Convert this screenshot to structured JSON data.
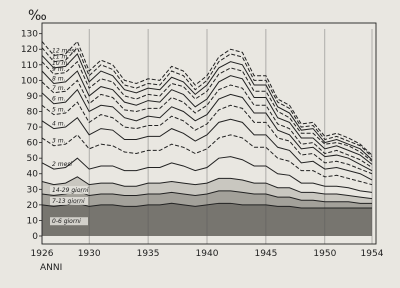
{
  "chart_data": {
    "type": "line",
    "y_label": "‰",
    "x_label": "ANNI",
    "x": [
      1926,
      1927,
      1928,
      1929,
      1930,
      1931,
      1932,
      1933,
      1934,
      1935,
      1936,
      1937,
      1938,
      1939,
      1940,
      1941,
      1942,
      1943,
      1944,
      1945,
      1946,
      1947,
      1948,
      1949,
      1950,
      1951,
      1952,
      1953,
      1954
    ],
    "xlim": [
      1926,
      1954
    ],
    "xticks": [
      1926,
      1930,
      1935,
      1940,
      1945,
      1950,
      1954
    ],
    "ylim": [
      0,
      133
    ],
    "yticks": [
      0,
      10,
      20,
      30,
      40,
      50,
      60,
      70,
      80,
      90,
      100,
      110,
      120,
      130
    ],
    "series": [
      {
        "name": "0-6 giorni",
        "color": "#222",
        "fill": "#77756f",
        "dash": false,
        "values": [
          20,
          19,
          20,
          21,
          19,
          20,
          20,
          19,
          19,
          20,
          20,
          21,
          20,
          19,
          20,
          21,
          21,
          20,
          20,
          20,
          19,
          19,
          18,
          18,
          18,
          18,
          18,
          18,
          18
        ]
      },
      {
        "name": "7-13 giorni",
        "color": "#222",
        "fill": "#a3a19a",
        "dash": false,
        "values": [
          27,
          26,
          27,
          29,
          26,
          27,
          27,
          26,
          26,
          27,
          27,
          28,
          27,
          26,
          27,
          29,
          29,
          28,
          27,
          27,
          25,
          25,
          23,
          23,
          22,
          22,
          22,
          21,
          21
        ]
      },
      {
        "name": "14-29 giorni",
        "color": "#222",
        "fill": "#c9c7c0",
        "dash": false,
        "values": [
          35,
          33,
          34,
          38,
          33,
          34,
          34,
          32,
          32,
          34,
          34,
          35,
          34,
          33,
          34,
          37,
          37,
          36,
          34,
          34,
          31,
          31,
          28,
          28,
          27,
          27,
          26,
          25,
          24
        ]
      },
      {
        "name": "2 mesi",
        "color": "#222",
        "dash": false,
        "values": [
          47,
          43,
          44,
          50,
          43,
          45,
          45,
          42,
          42,
          44,
          44,
          47,
          45,
          42,
          44,
          50,
          51,
          49,
          45,
          45,
          40,
          39,
          34,
          34,
          32,
          32,
          31,
          29,
          28
        ]
      },
      {
        "name": "3 m.",
        "color": "#222",
        "dash": true,
        "values": [
          63,
          58,
          59,
          65,
          56,
          59,
          58,
          54,
          53,
          55,
          55,
          59,
          57,
          53,
          56,
          63,
          65,
          63,
          57,
          57,
          50,
          48,
          42,
          42,
          38,
          39,
          37,
          35,
          33
        ]
      },
      {
        "name": "4 m.",
        "color": "#222",
        "dash": false,
        "values": [
          74,
          69,
          70,
          76,
          65,
          69,
          68,
          62,
          62,
          64,
          64,
          69,
          66,
          61,
          65,
          73,
          75,
          73,
          65,
          65,
          57,
          55,
          47,
          48,
          43,
          44,
          42,
          40,
          36
        ]
      },
      {
        "name": "5 m.",
        "color": "#222",
        "dash": true,
        "values": [
          84,
          78,
          79,
          86,
          73,
          78,
          76,
          70,
          69,
          71,
          71,
          77,
          74,
          68,
          72,
          81,
          84,
          82,
          73,
          73,
          63,
          61,
          52,
          53,
          47,
          48,
          46,
          43,
          40
        ]
      },
      {
        "name": "6 m.",
        "color": "#222",
        "dash": false,
        "values": [
          92,
          85,
          86,
          94,
          80,
          84,
          83,
          76,
          74,
          77,
          76,
          83,
          80,
          74,
          78,
          88,
          91,
          89,
          79,
          79,
          68,
          65,
          56,
          57,
          51,
          52,
          50,
          46,
          42
        ]
      },
      {
        "name": "7 m.",
        "color": "#222",
        "dash": true,
        "values": [
          99,
          92,
          93,
          100,
          85,
          91,
          89,
          81,
          80,
          82,
          82,
          89,
          86,
          79,
          84,
          94,
          97,
          95,
          84,
          84,
          72,
          69,
          59,
          60,
          53,
          55,
          52,
          49,
          44
        ]
      },
      {
        "name": "8 m.",
        "color": "#222",
        "dash": false,
        "values": [
          106,
          98,
          99,
          106,
          90,
          96,
          94,
          86,
          84,
          87,
          86,
          94,
          91,
          83,
          88,
          99,
          103,
          101,
          89,
          89,
          76,
          73,
          63,
          63,
          56,
          58,
          55,
          52,
          46
        ]
      },
      {
        "name": "9 m.",
        "color": "#222",
        "dash": true,
        "values": [
          112,
          104,
          105,
          112,
          95,
          101,
          99,
          90,
          88,
          91,
          90,
          98,
          96,
          88,
          93,
          104,
          108,
          106,
          93,
          93,
          80,
          76,
          66,
          66,
          59,
          60,
          58,
          54,
          48
        ]
      },
      {
        "name": "10 m.",
        "color": "#222",
        "dash": false,
        "values": [
          116,
          108,
          109,
          117,
          99,
          106,
          103,
          94,
          92,
          95,
          94,
          102,
          99,
          91,
          97,
          108,
          112,
          110,
          97,
          97,
          83,
          79,
          68,
          69,
          60,
          62,
          59,
          56,
          49
        ]
      },
      {
        "name": "11 m.",
        "color": "#222",
        "dash": true,
        "values": [
          121,
          112,
          113,
          121,
          103,
          110,
          107,
          97,
          95,
          98,
          97,
          106,
          103,
          94,
          100,
          112,
          117,
          115,
          100,
          100,
          86,
          82,
          70,
          71,
          62,
          64,
          61,
          58,
          51
        ]
      },
      {
        "name": "12 mesi",
        "color": "#222",
        "dash": true,
        "values": [
          125,
          116,
          117,
          125,
          106,
          113,
          110,
          100,
          98,
          101,
          100,
          109,
          106,
          97,
          103,
          115,
          120,
          118,
          103,
          103,
          88,
          84,
          72,
          73,
          64,
          66,
          63,
          59,
          52
        ]
      }
    ]
  }
}
